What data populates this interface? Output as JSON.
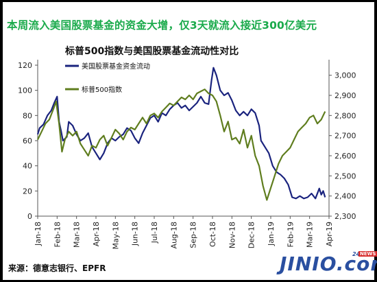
{
  "headline": "本周流入美国股票基金的资金大增，仅3天就流入接近300亿美元",
  "source": "来源：德意志银行、EPFR",
  "logo": {
    "text": "JINIO.com",
    "badge_num": "24",
    "badge_news": "NEWS"
  },
  "colors": {
    "fund_flow": "#1a237e",
    "sp500": "#5f7d1e",
    "headline": "#1aaa4b"
  },
  "chart_data": {
    "type": "line",
    "title": "标普500指数与美国股票基金流动性对比",
    "x_ticks": [
      "Jan-18",
      "Feb-18",
      "Mar-18",
      "Apr-18",
      "May-18",
      "Jun-18",
      "Jul-18",
      "Aug-18",
      "Sep-18",
      "Oct-18",
      "Nov-18",
      "Dec-18",
      "Jan-19",
      "Feb-19",
      "Mar-19",
      "Apr-19"
    ],
    "y_left": {
      "range": [
        0,
        120
      ],
      "ticks": [
        0,
        20,
        40,
        60,
        80,
        100,
        120
      ]
    },
    "y_right": {
      "range": [
        2300,
        3050
      ],
      "ticks": [
        2300,
        2400,
        2500,
        2600,
        2700,
        2800,
        2900,
        3000
      ],
      "tick_labels": [
        "2,300",
        "2,400",
        "2,500",
        "2,600",
        "2,700",
        "2,800",
        "2,900",
        "3,000"
      ]
    },
    "legend_placement": "top-left",
    "series": [
      {
        "name": "美国股票基金资金流动",
        "axis": "left",
        "color": "#1a237e",
        "x": [
          0,
          0.1,
          0.3,
          0.5,
          0.7,
          0.85,
          1.0,
          1.1,
          1.2,
          1.3,
          1.5,
          1.6,
          1.8,
          2.0,
          2.2,
          2.4,
          2.6,
          2.8,
          3.0,
          3.2,
          3.4,
          3.6,
          3.8,
          4.0,
          4.2,
          4.4,
          4.6,
          4.8,
          5.0,
          5.2,
          5.4,
          5.6,
          5.8,
          6.0,
          6.2,
          6.4,
          6.6,
          6.8,
          7.0,
          7.2,
          7.4,
          7.6,
          7.8,
          8.0,
          8.2,
          8.4,
          8.6,
          8.8,
          8.95,
          9.05,
          9.2,
          9.4,
          9.6,
          9.8,
          10.0,
          10.2,
          10.4,
          10.6,
          10.8,
          11.0,
          11.2,
          11.4,
          11.5,
          11.7,
          11.9,
          12.1,
          12.3,
          12.5,
          12.7,
          12.9,
          13.1,
          13.3,
          13.5,
          13.7,
          13.9,
          14.1,
          14.3,
          14.5,
          14.6,
          14.7,
          14.8
        ],
        "y": [
          65,
          70,
          73,
          80,
          84,
          90,
          95,
          75,
          68,
          60,
          63,
          75,
          72,
          65,
          60,
          62,
          66,
          55,
          50,
          45,
          50,
          58,
          62,
          60,
          63,
          65,
          70,
          68,
          62,
          58,
          66,
          72,
          78,
          80,
          75,
          82,
          80,
          85,
          88,
          90,
          86,
          88,
          84,
          87,
          90,
          95,
          90,
          89,
          108,
          118,
          112,
          100,
          96,
          98,
          92,
          84,
          80,
          83,
          80,
          85,
          82,
          72,
          60,
          55,
          50,
          40,
          35,
          33,
          30,
          25,
          15,
          14,
          16,
          14,
          15,
          18,
          14,
          22,
          17,
          20,
          15
        ]
      },
      {
        "name": "标普500指数",
        "axis": "right",
        "color": "#5f7d1e",
        "x": [
          0,
          0.2,
          0.4,
          0.6,
          0.8,
          0.95,
          1.1,
          1.25,
          1.4,
          1.6,
          1.8,
          2.0,
          2.2,
          2.4,
          2.6,
          2.8,
          3.0,
          3.2,
          3.4,
          3.6,
          3.8,
          4.0,
          4.2,
          4.4,
          4.6,
          4.8,
          5.0,
          5.2,
          5.4,
          5.6,
          5.8,
          6.0,
          6.2,
          6.4,
          6.6,
          6.8,
          7.0,
          7.2,
          7.4,
          7.6,
          7.8,
          8.0,
          8.2,
          8.4,
          8.6,
          8.8,
          9.0,
          9.2,
          9.4,
          9.6,
          9.8,
          10.0,
          10.2,
          10.4,
          10.6,
          10.8,
          11.0,
          11.2,
          11.4,
          11.6,
          11.8,
          12.0,
          12.2,
          12.4,
          12.6,
          12.8,
          13.0,
          13.2,
          13.4,
          13.6,
          13.8,
          14.0,
          14.2,
          14.4,
          14.6,
          14.8
        ],
        "y": [
          2680,
          2720,
          2760,
          2780,
          2830,
          2870,
          2760,
          2620,
          2680,
          2720,
          2700,
          2720,
          2660,
          2630,
          2600,
          2650,
          2640,
          2680,
          2700,
          2650,
          2690,
          2730,
          2710,
          2680,
          2720,
          2740,
          2730,
          2760,
          2790,
          2760,
          2800,
          2810,
          2790,
          2820,
          2840,
          2860,
          2850,
          2870,
          2890,
          2880,
          2900,
          2880,
          2910,
          2920,
          2930,
          2910,
          2900,
          2870,
          2800,
          2720,
          2770,
          2680,
          2690,
          2660,
          2730,
          2640,
          2700,
          2600,
          2550,
          2450,
          2380,
          2440,
          2500,
          2560,
          2600,
          2620,
          2640,
          2680,
          2720,
          2740,
          2760,
          2790,
          2800,
          2760,
          2780,
          2820
        ]
      }
    ]
  }
}
